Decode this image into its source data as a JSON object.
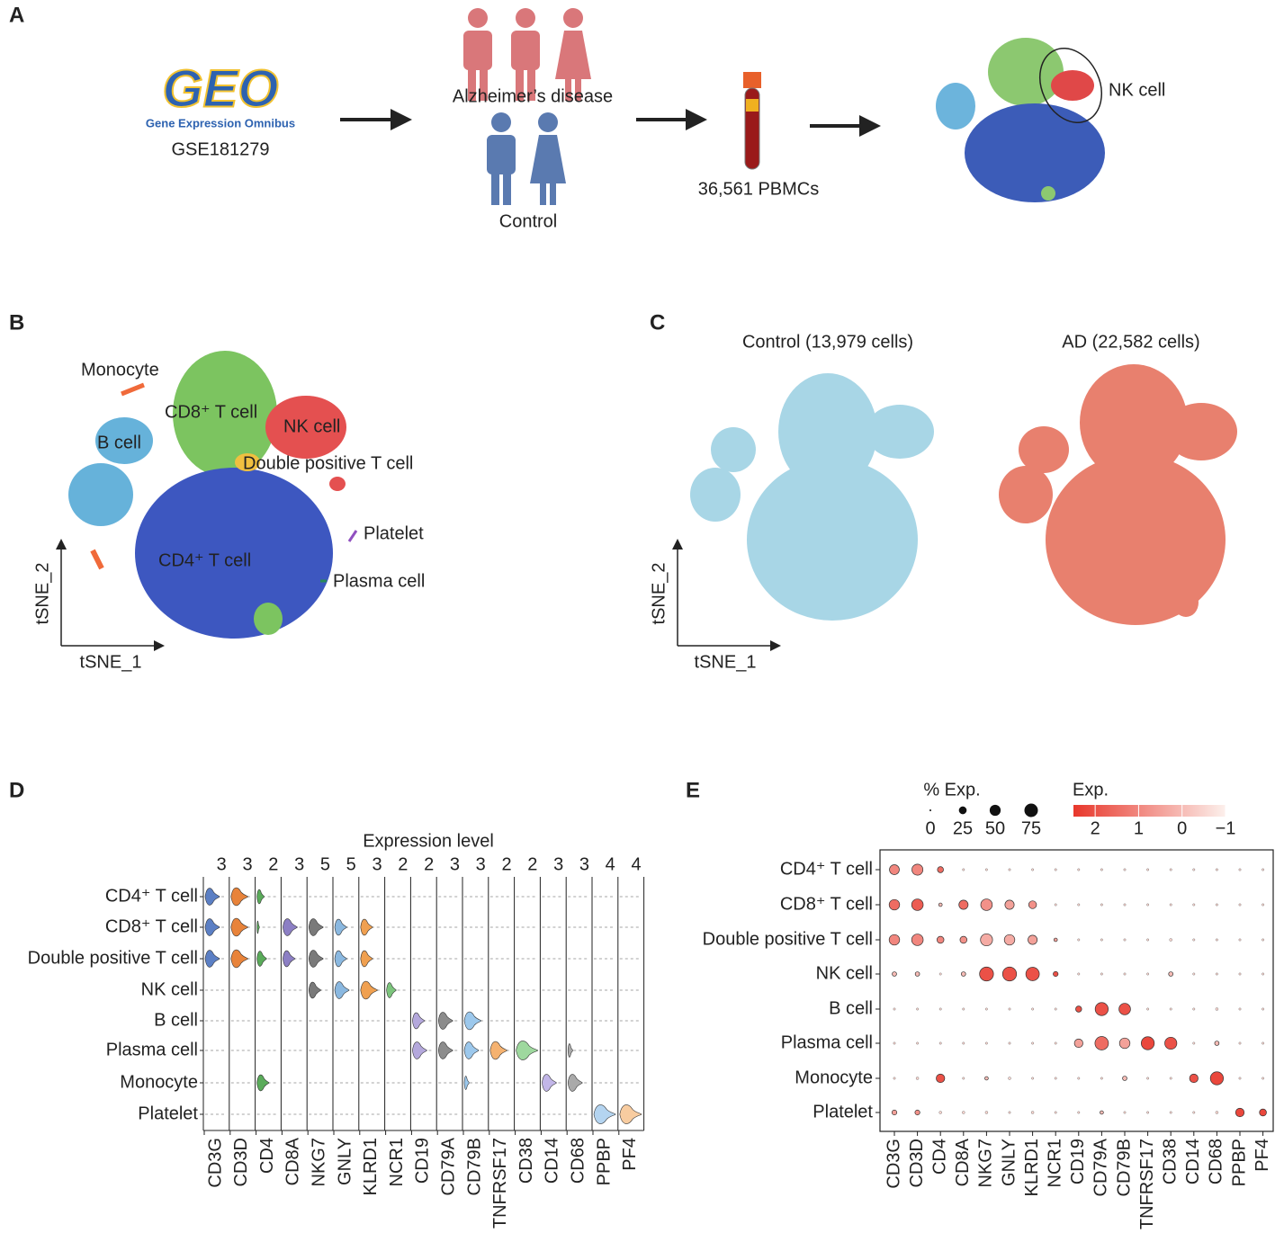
{
  "panel_a": {
    "label": "A",
    "geo_logo": "GEO",
    "geo_subtitle": "Gene Expression Omnibus",
    "accession": "GSE181279",
    "group_ad": "Alzheimer’s disease",
    "group_control": "Control",
    "sample": "36,561 PBMCs",
    "highlight": "NK cell"
  },
  "panel_b": {
    "label": "B",
    "clusters": [
      "Monocyte",
      "CD8⁺ T cell",
      "NK cell",
      "B cell",
      "Double positive T cell",
      "Platelet",
      "CD4⁺ T cell",
      "Plasma cell"
    ],
    "xlabel": "tSNE_1",
    "ylabel": "tSNE_2"
  },
  "panel_c": {
    "label": "C",
    "titles": [
      "Control (13,979 cells)",
      "AD (22,582 cells)"
    ],
    "xlabel": "tSNE_1",
    "ylabel": "tSNE_2"
  },
  "panel_d": {
    "label": "D",
    "title": "Expression level",
    "cell_types": [
      "CD4⁺ T cell",
      "CD8⁺ T cell",
      "Double positive T cell",
      "NK cell",
      "B cell",
      "Plasma cell",
      "Monocyte",
      "Platelet"
    ],
    "genes": [
      "CD3G",
      "CD3D",
      "CD4",
      "CD8A",
      "NKG7",
      "GNLY",
      "KLRD1",
      "NCR1",
      "CD19",
      "CD79A",
      "CD79B",
      "TNFRSF17",
      "CD38",
      "CD14",
      "CD68",
      "PPBP",
      "PF4"
    ],
    "max_levels": [
      3,
      3,
      2,
      3,
      5,
      5,
      3,
      2,
      2,
      3,
      3,
      2,
      2,
      3,
      3,
      4,
      4
    ],
    "colors": [
      "#5b7fc4",
      "#e8833a",
      "#5aab5a",
      "#8c7fc4",
      "#7a7a7a",
      "#8ab8e0",
      "#f0a050",
      "#7cc47c",
      "#b4a8dc",
      "#8c8c8c",
      "#9cc8ec",
      "#f5b270",
      "#9ed89e",
      "#c2b6e8",
      "#aaaaaa",
      "#b4d4f0",
      "#f8cca0"
    ],
    "violin_widths": [
      [
        0.6,
        0.7,
        0.3,
        0,
        0,
        0,
        0,
        0,
        0,
        0,
        0,
        0,
        0,
        0,
        0,
        0,
        0
      ],
      [
        0.6,
        0.7,
        0.1,
        0.6,
        0.6,
        0.5,
        0.5,
        0,
        0,
        0,
        0,
        0,
        0,
        0,
        0,
        0,
        0
      ],
      [
        0.6,
        0.7,
        0.4,
        0.5,
        0.6,
        0.5,
        0.5,
        0,
        0,
        0,
        0,
        0,
        0,
        0,
        0,
        0,
        0
      ],
      [
        0,
        0,
        0,
        0,
        0.5,
        0.6,
        0.7,
        0.4,
        0,
        0,
        0,
        0,
        0,
        0,
        0,
        0,
        0
      ],
      [
        0,
        0,
        0,
        0,
        0,
        0,
        0,
        0,
        0.5,
        0.6,
        0.7,
        0,
        0,
        0,
        0,
        0,
        0
      ],
      [
        0,
        0,
        0,
        0,
        0,
        0,
        0,
        0,
        0.6,
        0.6,
        0.6,
        0.7,
        0.9,
        0,
        0.2,
        0,
        0
      ],
      [
        0,
        0,
        0.5,
        0,
        0,
        0,
        0,
        0,
        0,
        0,
        0.2,
        0,
        0,
        0.6,
        0.6,
        0,
        0
      ],
      [
        0,
        0,
        0,
        0,
        0,
        0,
        0,
        0,
        0,
        0,
        0,
        0,
        0,
        0,
        0,
        0.9,
        0.9
      ]
    ]
  },
  "panel_e": {
    "label": "E",
    "size_title": "% Exp.",
    "color_title": "Exp.",
    "size_ticks": [
      0,
      25,
      50,
      75
    ],
    "color_ticks": [
      2,
      1,
      0,
      {
        "value": -1,
        "label": "−1"
      }
    ],
    "color_lim": [
      2.5,
      -1
    ],
    "cell_types": [
      "CD4⁺ T cell",
      "CD8⁺ T cell",
      "Double positive T cell",
      "NK cell",
      "B cell",
      "Plasma cell",
      "Monocyte",
      "Platelet"
    ],
    "genes": [
      "CD3G",
      "CD3D",
      "CD4",
      "CD8A",
      "NKG7",
      "GNLY",
      "KLRD1",
      "NCR1",
      "CD19",
      "CD79A",
      "CD79B",
      "TNFRSF17",
      "CD38",
      "CD14",
      "CD68",
      "PPBP",
      "PF4"
    ],
    "pct": [
      [
        40,
        50,
        15,
        2,
        2,
        2,
        2,
        2,
        2,
        2,
        2,
        2,
        2,
        2,
        2,
        2,
        2
      ],
      [
        45,
        55,
        5,
        35,
        55,
        35,
        25,
        2,
        2,
        2,
        2,
        2,
        2,
        2,
        2,
        2,
        2
      ],
      [
        45,
        55,
        20,
        20,
        60,
        45,
        35,
        5,
        2,
        2,
        2,
        2,
        3,
        2,
        2,
        2,
        2
      ],
      [
        8,
        8,
        2,
        8,
        80,
        80,
        75,
        10,
        2,
        2,
        2,
        2,
        8,
        2,
        2,
        2,
        2
      ],
      [
        2,
        2,
        2,
        2,
        2,
        2,
        2,
        2,
        15,
        70,
        55,
        2,
        2,
        2,
        3,
        2,
        2
      ],
      [
        2,
        2,
        2,
        2,
        2,
        2,
        2,
        2,
        30,
        75,
        45,
        70,
        60,
        2,
        8,
        2,
        2
      ],
      [
        2,
        3,
        30,
        2,
        5,
        3,
        2,
        2,
        2,
        2,
        8,
        2,
        2,
        30,
        70,
        2,
        2
      ],
      [
        10,
        10,
        3,
        3,
        3,
        2,
        3,
        2,
        2,
        5,
        2,
        2,
        2,
        2,
        3,
        30,
        20
      ]
    ],
    "exp": [
      [
        1,
        1,
        1.5,
        -0.5,
        -0.5,
        -0.5,
        -0.5,
        -0.5,
        -0.5,
        -0.5,
        -0.5,
        -0.5,
        -0.5,
        -0.5,
        -0.5,
        -0.5,
        -0.5
      ],
      [
        1.5,
        1.8,
        0,
        1.5,
        0.8,
        0.5,
        0.8,
        -0.5,
        -0.5,
        -0.5,
        -0.5,
        -0.5,
        -0.5,
        -0.5,
        -0.5,
        -0.5,
        -0.5
      ],
      [
        1,
        1,
        1,
        0.8,
        0.3,
        0.3,
        0.5,
        0.5,
        -0.5,
        -0.5,
        -0.5,
        -0.5,
        -0.5,
        -0.5,
        -0.5,
        -0.5,
        -0.5
      ],
      [
        0,
        0,
        -0.5,
        0,
        2,
        2,
        2,
        2,
        -0.5,
        -0.5,
        -0.5,
        -0.5,
        0,
        -0.5,
        -0.5,
        -0.5,
        -0.5
      ],
      [
        -0.5,
        -0.5,
        -0.5,
        -0.5,
        -0.5,
        -0.5,
        -0.5,
        -0.5,
        2,
        2,
        2,
        -0.5,
        -0.5,
        -0.5,
        -0.5,
        -0.5,
        -0.5
      ],
      [
        -0.5,
        -0.5,
        -0.5,
        -0.5,
        -0.5,
        -0.5,
        -0.5,
        -0.5,
        0.5,
        1.5,
        0.5,
        2.2,
        2,
        -0.5,
        0,
        -0.5,
        -0.5
      ],
      [
        -0.5,
        -0.5,
        2,
        -0.5,
        0,
        -0.5,
        -0.5,
        -0.5,
        -0.5,
        -0.5,
        0,
        -0.5,
        -0.5,
        2,
        2.2,
        -0.5,
        -0.5
      ],
      [
        0.5,
        0.8,
        -0.5,
        -0.5,
        -0.5,
        -0.5,
        -0.5,
        -0.5,
        -0.5,
        0,
        -0.5,
        -0.5,
        -0.5,
        -0.5,
        -0.5,
        2.2,
        2.2
      ]
    ]
  }
}
